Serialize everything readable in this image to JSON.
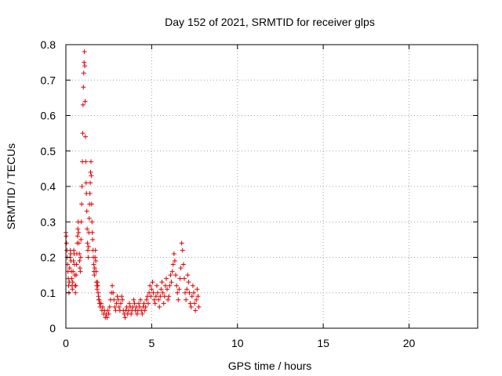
{
  "chart_data": {
    "type": "scatter",
    "title": "Day 152 of 2021, SRMTID for receiver glps",
    "xlabel": "GPS time / hours",
    "ylabel": "SRMTID / TECUs",
    "xlim": [
      0,
      24
    ],
    "ylim": [
      0,
      0.8
    ],
    "xticks": [
      0,
      5,
      10,
      15,
      20
    ],
    "xtick_labels": [
      "0",
      "5",
      "10",
      "15",
      "20"
    ],
    "yticks": [
      0,
      0.1,
      0.2,
      0.3,
      0.4,
      0.5,
      0.6,
      0.7,
      0.8
    ],
    "ytick_labels": [
      "0",
      "0.1",
      "0.2",
      "0.3",
      "0.4",
      "0.5",
      "0.6",
      "0.7",
      "0.8"
    ],
    "grid": true,
    "marker": "+",
    "marker_color": "#e00000",
    "series": [
      {
        "name": "SRMTID",
        "points": [
          [
            0.0,
            0.27
          ],
          [
            0.02,
            0.26
          ],
          [
            0.04,
            0.24
          ],
          [
            0.06,
            0.22
          ],
          [
            0.08,
            0.2
          ],
          [
            0.1,
            0.18
          ],
          [
            0.12,
            0.16
          ],
          [
            0.14,
            0.14
          ],
          [
            0.16,
            0.12
          ],
          [
            0.18,
            0.1
          ],
          [
            0.2,
            0.13
          ],
          [
            0.22,
            0.17
          ],
          [
            0.24,
            0.2
          ],
          [
            0.26,
            0.22
          ],
          [
            0.28,
            0.21
          ],
          [
            0.3,
            0.19
          ],
          [
            0.32,
            0.16
          ],
          [
            0.34,
            0.14
          ],
          [
            0.36,
            0.12
          ],
          [
            0.38,
            0.11
          ],
          [
            0.4,
            0.13
          ],
          [
            0.42,
            0.16
          ],
          [
            0.44,
            0.19
          ],
          [
            0.46,
            0.22
          ],
          [
            0.48,
            0.21
          ],
          [
            0.5,
            0.18
          ],
          [
            0.52,
            0.15
          ],
          [
            0.54,
            0.12
          ],
          [
            0.56,
            0.1
          ],
          [
            0.58,
            0.12
          ],
          [
            0.6,
            0.15
          ],
          [
            0.62,
            0.18
          ],
          [
            0.64,
            0.21
          ],
          [
            0.66,
            0.24
          ],
          [
            0.68,
            0.26
          ],
          [
            0.7,
            0.28
          ],
          [
            0.72,
            0.3
          ],
          [
            0.74,
            0.27
          ],
          [
            0.76,
            0.24
          ],
          [
            0.78,
            0.21
          ],
          [
            0.8,
            0.19
          ],
          [
            0.82,
            0.17
          ],
          [
            0.84,
            0.16
          ],
          [
            0.86,
            0.2
          ],
          [
            0.88,
            0.25
          ],
          [
            0.9,
            0.3
          ],
          [
            0.92,
            0.35
          ],
          [
            0.94,
            0.4
          ],
          [
            0.96,
            0.47
          ],
          [
            0.98,
            0.55
          ],
          [
            1.0,
            0.63
          ],
          [
            1.02,
            0.68
          ],
          [
            1.04,
            0.72
          ],
          [
            1.06,
            0.75
          ],
          [
            1.08,
            0.78
          ],
          [
            1.1,
            0.74
          ],
          [
            1.12,
            0.64
          ],
          [
            1.14,
            0.54
          ],
          [
            1.16,
            0.47
          ],
          [
            1.18,
            0.41
          ],
          [
            1.2,
            0.38
          ],
          [
            1.22,
            0.33
          ],
          [
            1.24,
            0.28
          ],
          [
            1.26,
            0.24
          ],
          [
            1.28,
            0.22
          ],
          [
            1.3,
            0.2
          ],
          [
            1.32,
            0.23
          ],
          [
            1.34,
            0.27
          ],
          [
            1.36,
            0.31
          ],
          [
            1.38,
            0.35
          ],
          [
            1.4,
            0.38
          ],
          [
            1.42,
            0.41
          ],
          [
            1.44,
            0.44
          ],
          [
            1.46,
            0.47
          ],
          [
            1.48,
            0.43
          ],
          [
            1.5,
            0.35
          ],
          [
            1.52,
            0.3
          ],
          [
            1.54,
            0.27
          ],
          [
            1.56,
            0.25
          ],
          [
            1.58,
            0.22
          ],
          [
            1.6,
            0.2
          ],
          [
            1.62,
            0.18
          ],
          [
            1.64,
            0.16
          ],
          [
            1.66,
            0.15
          ],
          [
            1.68,
            0.17
          ],
          [
            1.7,
            0.2
          ],
          [
            1.72,
            0.22
          ],
          [
            1.74,
            0.19
          ],
          [
            1.76,
            0.16
          ],
          [
            1.78,
            0.13
          ],
          [
            1.8,
            0.12
          ],
          [
            1.82,
            0.11
          ],
          [
            1.84,
            0.13
          ],
          [
            1.86,
            0.12
          ],
          [
            1.88,
            0.1
          ],
          [
            1.9,
            0.09
          ],
          [
            1.92,
            0.08
          ],
          [
            1.94,
            0.08
          ],
          [
            1.96,
            0.07
          ],
          [
            1.98,
            0.07
          ],
          [
            2.0,
            0.06
          ],
          [
            2.05,
            0.07
          ],
          [
            2.1,
            0.05
          ],
          [
            2.15,
            0.06
          ],
          [
            2.2,
            0.04
          ],
          [
            2.25,
            0.05
          ],
          [
            2.3,
            0.03
          ],
          [
            2.35,
            0.04
          ],
          [
            2.4,
            0.03
          ],
          [
            2.45,
            0.05
          ],
          [
            2.5,
            0.04
          ],
          [
            2.55,
            0.06
          ],
          [
            2.6,
            0.08
          ],
          [
            2.65,
            0.1
          ],
          [
            2.7,
            0.12
          ],
          [
            2.75,
            0.1
          ],
          [
            2.8,
            0.08
          ],
          [
            2.85,
            0.06
          ],
          [
            2.9,
            0.05
          ],
          [
            2.95,
            0.07
          ],
          [
            3.0,
            0.09
          ],
          [
            3.05,
            0.08
          ],
          [
            3.1,
            0.06
          ],
          [
            3.15,
            0.05
          ],
          [
            3.2,
            0.07
          ],
          [
            3.25,
            0.09
          ],
          [
            3.3,
            0.08
          ],
          [
            3.35,
            0.05
          ],
          [
            3.4,
            0.04
          ],
          [
            3.45,
            0.03
          ],
          [
            3.5,
            0.05
          ],
          [
            3.55,
            0.06
          ],
          [
            3.6,
            0.04
          ],
          [
            3.65,
            0.05
          ],
          [
            3.7,
            0.07
          ],
          [
            3.75,
            0.06
          ],
          [
            3.8,
            0.04
          ],
          [
            3.85,
            0.05
          ],
          [
            3.9,
            0.06
          ],
          [
            3.95,
            0.08
          ],
          [
            4.0,
            0.07
          ],
          [
            4.05,
            0.05
          ],
          [
            4.1,
            0.06
          ],
          [
            4.15,
            0.04
          ],
          [
            4.2,
            0.05
          ],
          [
            4.25,
            0.07
          ],
          [
            4.3,
            0.06
          ],
          [
            4.35,
            0.08
          ],
          [
            4.4,
            0.05
          ],
          [
            4.45,
            0.04
          ],
          [
            4.5,
            0.06
          ],
          [
            4.55,
            0.07
          ],
          [
            4.6,
            0.05
          ],
          [
            4.65,
            0.06
          ],
          [
            4.7,
            0.08
          ],
          [
            4.75,
            0.09
          ],
          [
            4.8,
            0.07
          ],
          [
            4.85,
            0.1
          ],
          [
            4.9,
            0.12
          ],
          [
            4.95,
            0.09
          ],
          [
            5.0,
            0.11
          ],
          [
            5.05,
            0.13
          ],
          [
            5.1,
            0.1
          ],
          [
            5.15,
            0.08
          ],
          [
            5.2,
            0.07
          ],
          [
            5.25,
            0.09
          ],
          [
            5.3,
            0.12
          ],
          [
            5.35,
            0.1
          ],
          [
            5.4,
            0.08
          ],
          [
            5.45,
            0.06
          ],
          [
            5.5,
            0.09
          ],
          [
            5.55,
            0.11
          ],
          [
            5.6,
            0.13
          ],
          [
            5.65,
            0.1
          ],
          [
            5.7,
            0.07
          ],
          [
            5.75,
            0.09
          ],
          [
            5.8,
            0.12
          ],
          [
            5.85,
            0.14
          ],
          [
            5.9,
            0.11
          ],
          [
            5.95,
            0.08
          ],
          [
            6.0,
            0.09
          ],
          [
            6.05,
            0.12
          ],
          [
            6.1,
            0.15
          ],
          [
            6.15,
            0.13
          ],
          [
            6.2,
            0.16
          ],
          [
            6.25,
            0.18
          ],
          [
            6.3,
            0.21
          ],
          [
            6.35,
            0.19
          ],
          [
            6.4,
            0.15
          ],
          [
            6.45,
            0.12
          ],
          [
            6.5,
            0.1
          ],
          [
            6.55,
            0.08
          ],
          [
            6.6,
            0.11
          ],
          [
            6.65,
            0.14
          ],
          [
            6.7,
            0.17
          ],
          [
            6.75,
            0.24
          ],
          [
            6.8,
            0.22
          ],
          [
            6.85,
            0.18
          ],
          [
            6.9,
            0.14
          ],
          [
            6.95,
            0.1
          ],
          [
            7.0,
            0.08
          ],
          [
            7.05,
            0.11
          ],
          [
            7.1,
            0.15
          ],
          [
            7.15,
            0.13
          ],
          [
            7.2,
            0.1
          ],
          [
            7.25,
            0.07
          ],
          [
            7.3,
            0.06
          ],
          [
            7.35,
            0.09
          ],
          [
            7.4,
            0.12
          ],
          [
            7.45,
            0.1
          ],
          [
            7.5,
            0.07
          ],
          [
            7.55,
            0.05
          ],
          [
            7.6,
            0.08
          ],
          [
            7.65,
            0.11
          ],
          [
            7.7,
            0.09
          ],
          [
            7.75,
            0.06
          ]
        ]
      }
    ]
  }
}
